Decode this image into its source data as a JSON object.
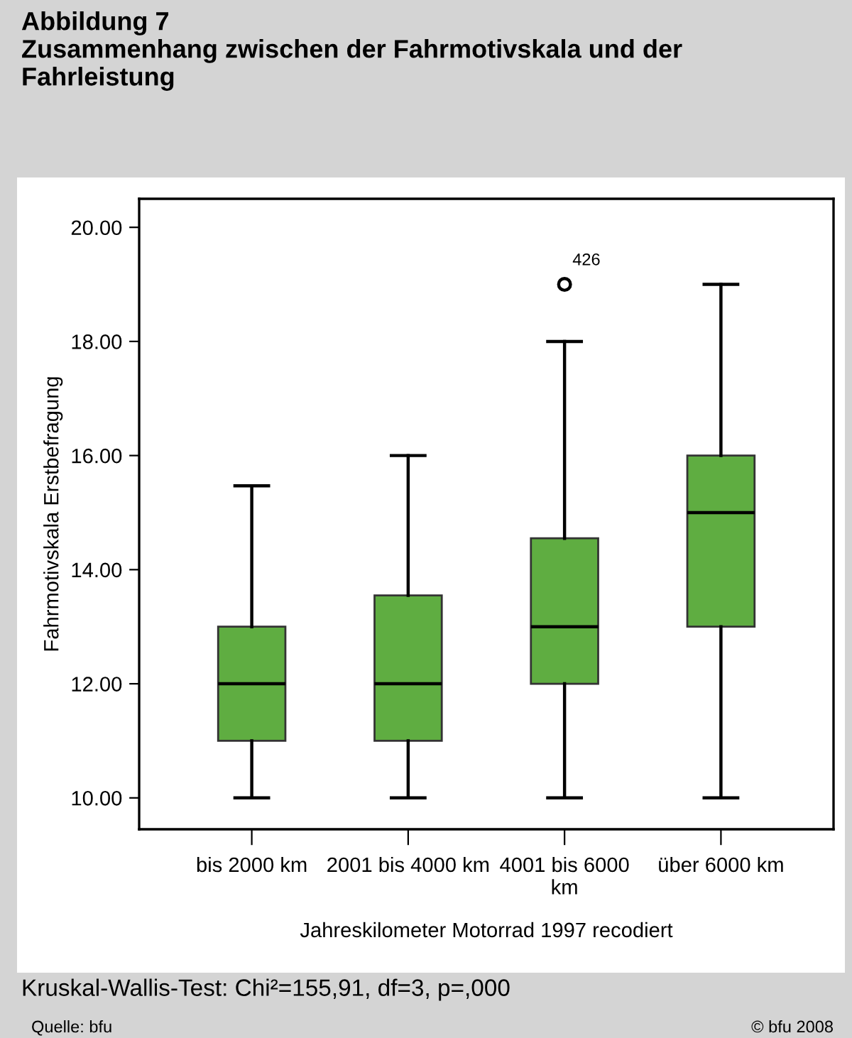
{
  "chart_data": {
    "type": "box",
    "title": "Abbildung 7\nZusammenhang zwischen der Fahrmotivskala und der\nFahrleistung",
    "xlabel": "Jahreskilometer Motorrad 1997 recodiert",
    "ylabel": "Fahrmotivskala Erstbefragung",
    "categories": [
      "bis 2000 km",
      "2001 bis 4000 km",
      "4001 bis 6000\nkm",
      "über 6000 km"
    ],
    "color": "#5fad41",
    "boxes": [
      {
        "low": 10,
        "q1": 11,
        "median": 12,
        "q3": 13,
        "high": 15.47
      },
      {
        "low": 10,
        "q1": 11,
        "median": 12,
        "q3": 13.55,
        "high": 16
      },
      {
        "low": 10,
        "q1": 12,
        "median": 13,
        "q3": 14.55,
        "high": 18,
        "outliers": [
          19
        ]
      },
      {
        "low": 10,
        "q1": 13,
        "median": 15,
        "q3": 16,
        "high": 19
      }
    ],
    "ylim": [
      9.45,
      20.5
    ],
    "yticks": [
      {
        "value": 10,
        "label": "10.00"
      },
      {
        "value": 12,
        "label": "12.00"
      },
      {
        "value": 14,
        "label": "14.00"
      },
      {
        "value": 16,
        "label": "16.00"
      },
      {
        "value": 18,
        "label": "18.00"
      },
      {
        "value": 20,
        "label": "20.00"
      }
    ],
    "grid": false,
    "annotations": [
      "426",
      "Kruskal-Wallis-Test: Chi²=155,91, df=3, p=,000",
      "Quelle: bfu",
      "© bfu 2008"
    ]
  }
}
